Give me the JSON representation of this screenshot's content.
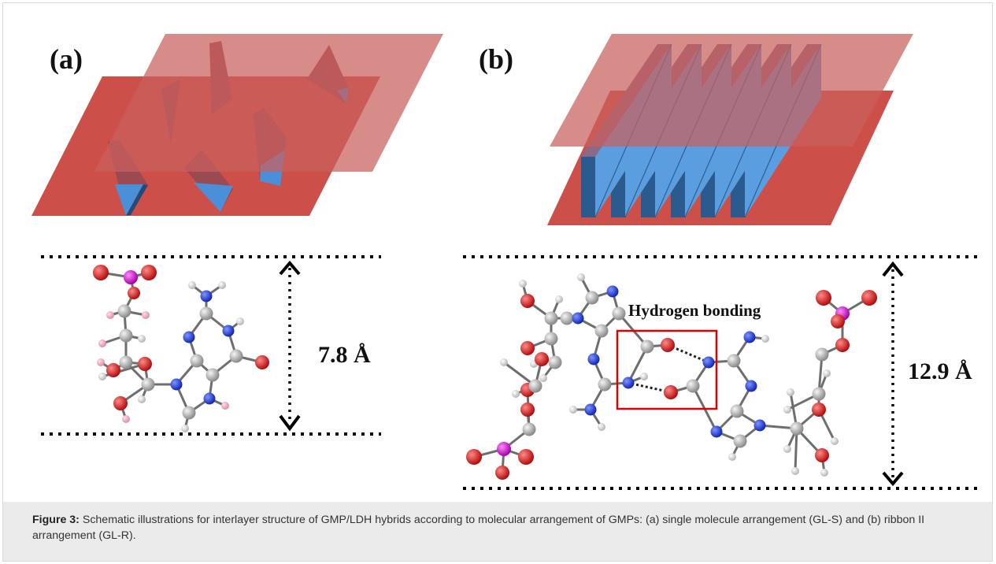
{
  "figure": {
    "panel_a_label": "(a)",
    "panel_b_label": "(b)",
    "distance_a": "7.8 Å",
    "distance_b": "12.9 Å",
    "hydrogen_bonding_label": "Hydrogen bonding"
  },
  "caption": {
    "label": "Figure 3:",
    "text": " Schematic illustrations for interlayer structure of GMP/LDH hybrids according to molecular arrangement of GMPs: (a) single molecule arrangement (GL-S) and (b) ribbon II arrangement (GL-R)."
  },
  "colors": {
    "layer": "#cd4f4a",
    "layer_translucent": "#c9605d",
    "ribbon": "#4a90d9",
    "carbon": "#a8a8a8",
    "nitrogen": "#1e3fd8",
    "oxygen": "#e31d1d",
    "phosphorus": "#d614d6",
    "hydrogen": "#f2f2f2",
    "hbond_box": "#e00000"
  }
}
